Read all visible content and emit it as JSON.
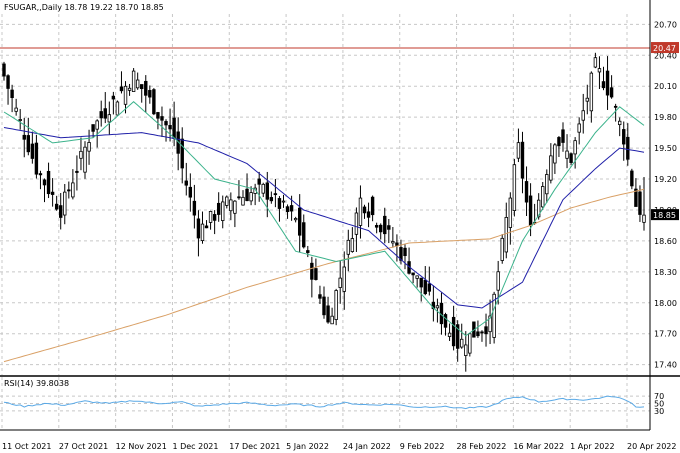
{
  "header": {
    "symbol_line": "FSUGAR,,Daily  18.78 19.22 18.70 18.85",
    "rsi_label": "RSI(14) 39.8038"
  },
  "colors": {
    "bull": "#ffffff",
    "bear": "#000000",
    "ma_fast": "#3cb38c",
    "ma_mid": "#1f1fa8",
    "ma_slow": "#d9a066",
    "resistance": "#c0392b",
    "rsi": "#5aa9e6",
    "grid": "#c8c8c8",
    "last_price_bg": "#000000"
  },
  "chart_data": {
    "type": "candlestick",
    "title": "FSUGAR,,Daily",
    "price_ylim": [
      17.3,
      20.8
    ],
    "price_ticks": [
      "20.70",
      "20.40",
      "20.10",
      "19.80",
      "19.50",
      "19.20",
      "18.90",
      "18.60",
      "18.30",
      "18.00",
      "17.70",
      "17.40"
    ],
    "rsi_ylim": [
      0,
      100
    ],
    "rsi_ticks": [
      "70",
      "50",
      "30"
    ],
    "x_labels": [
      "11 Oct 2021",
      "27 Oct 2021",
      "12 Nov 2021",
      "1 Dec 2021",
      "17 Dec 2021",
      "5 Jan 2022",
      "24 Jan 2022",
      "9 Feb 2022",
      "28 Feb 2022",
      "16 Mar 2022",
      "1 Apr 2022",
      "20 Apr 2022"
    ],
    "resistance_level": "20.47",
    "last_price": "18.85",
    "last_ohlc": {
      "open": 18.78,
      "high": 19.22,
      "low": 18.7,
      "close": 18.85
    },
    "grid": true,
    "key_closes": [
      {
        "bar": 0,
        "close": 20.2
      },
      {
        "bar": 8,
        "close": 19.3
      },
      {
        "bar": 14,
        "close": 18.9
      },
      {
        "bar": 22,
        "close": 19.7
      },
      {
        "bar": 32,
        "close": 20.2
      },
      {
        "bar": 42,
        "close": 19.6
      },
      {
        "bar": 48,
        "close": 18.7
      },
      {
        "bar": 56,
        "close": 19.0
      },
      {
        "bar": 64,
        "close": 19.1
      },
      {
        "bar": 72,
        "close": 18.8
      },
      {
        "bar": 80,
        "close": 17.8
      },
      {
        "bar": 88,
        "close": 19.0
      },
      {
        "bar": 96,
        "close": 18.6
      },
      {
        "bar": 104,
        "close": 18.1
      },
      {
        "bar": 112,
        "close": 17.6
      },
      {
        "bar": 120,
        "close": 17.8
      },
      {
        "bar": 124,
        "close": 18.8
      },
      {
        "bar": 127,
        "close": 19.5
      },
      {
        "bar": 130,
        "close": 18.7
      },
      {
        "bar": 136,
        "close": 19.6
      },
      {
        "bar": 140,
        "close": 19.4
      },
      {
        "bar": 146,
        "close": 20.3
      },
      {
        "bar": 150,
        "close": 20.0
      },
      {
        "bar": 153,
        "close": 19.6
      },
      {
        "bar": 156,
        "close": 18.95
      },
      {
        "bar": 158,
        "close": 18.85
      }
    ],
    "ma_fast_points": [
      {
        "bar": 0,
        "value": 19.85
      },
      {
        "bar": 12,
        "value": 19.55
      },
      {
        "bar": 22,
        "value": 19.6
      },
      {
        "bar": 32,
        "value": 19.95
      },
      {
        "bar": 42,
        "value": 19.6
      },
      {
        "bar": 52,
        "value": 19.2
      },
      {
        "bar": 62,
        "value": 19.1
      },
      {
        "bar": 72,
        "value": 18.5
      },
      {
        "bar": 82,
        "value": 18.4
      },
      {
        "bar": 94,
        "value": 18.5
      },
      {
        "bar": 106,
        "value": 17.95
      },
      {
        "bar": 114,
        "value": 17.68
      },
      {
        "bar": 120,
        "value": 17.85
      },
      {
        "bar": 128,
        "value": 18.6
      },
      {
        "bar": 136,
        "value": 19.1
      },
      {
        "bar": 146,
        "value": 19.65
      },
      {
        "bar": 152,
        "value": 19.9
      },
      {
        "bar": 158,
        "value": 19.72
      }
    ],
    "ma_mid_points": [
      {
        "bar": 0,
        "value": 19.7
      },
      {
        "bar": 14,
        "value": 19.6
      },
      {
        "bar": 34,
        "value": 19.65
      },
      {
        "bar": 48,
        "value": 19.55
      },
      {
        "bar": 60,
        "value": 19.35
      },
      {
        "bar": 74,
        "value": 18.9
      },
      {
        "bar": 90,
        "value": 18.7
      },
      {
        "bar": 100,
        "value": 18.35
      },
      {
        "bar": 112,
        "value": 17.98
      },
      {
        "bar": 118,
        "value": 17.95
      },
      {
        "bar": 128,
        "value": 18.2
      },
      {
        "bar": 138,
        "value": 19.0
      },
      {
        "bar": 146,
        "value": 19.3
      },
      {
        "bar": 152,
        "value": 19.5
      },
      {
        "bar": 158,
        "value": 19.46
      }
    ],
    "ma_slow_points": [
      {
        "bar": 0,
        "value": 17.43
      },
      {
        "bar": 20,
        "value": 17.65
      },
      {
        "bar": 40,
        "value": 17.88
      },
      {
        "bar": 60,
        "value": 18.15
      },
      {
        "bar": 80,
        "value": 18.38
      },
      {
        "bar": 100,
        "value": 18.58
      },
      {
        "bar": 120,
        "value": 18.62
      },
      {
        "bar": 130,
        "value": 18.75
      },
      {
        "bar": 140,
        "value": 18.92
      },
      {
        "bar": 150,
        "value": 19.03
      },
      {
        "bar": 158,
        "value": 19.1
      }
    ],
    "rsi_points": [
      {
        "bar": 0,
        "value": 53
      },
      {
        "bar": 5,
        "value": 42
      },
      {
        "bar": 10,
        "value": 50
      },
      {
        "bar": 15,
        "value": 46
      },
      {
        "bar": 20,
        "value": 56
      },
      {
        "bar": 26,
        "value": 50
      },
      {
        "bar": 32,
        "value": 58
      },
      {
        "bar": 38,
        "value": 50
      },
      {
        "bar": 44,
        "value": 54
      },
      {
        "bar": 48,
        "value": 42
      },
      {
        "bar": 54,
        "value": 48
      },
      {
        "bar": 60,
        "value": 52
      },
      {
        "bar": 66,
        "value": 45
      },
      {
        "bar": 72,
        "value": 48
      },
      {
        "bar": 78,
        "value": 42
      },
      {
        "bar": 84,
        "value": 52
      },
      {
        "bar": 90,
        "value": 46
      },
      {
        "bar": 96,
        "value": 48
      },
      {
        "bar": 102,
        "value": 40
      },
      {
        "bar": 108,
        "value": 42
      },
      {
        "bar": 114,
        "value": 37
      },
      {
        "bar": 120,
        "value": 42
      },
      {
        "bar": 124,
        "value": 62
      },
      {
        "bar": 128,
        "value": 68
      },
      {
        "bar": 132,
        "value": 55
      },
      {
        "bar": 138,
        "value": 62
      },
      {
        "bar": 144,
        "value": 60
      },
      {
        "bar": 150,
        "value": 70
      },
      {
        "bar": 154,
        "value": 58
      },
      {
        "bar": 156,
        "value": 42
      },
      {
        "bar": 158,
        "value": 40
      }
    ]
  }
}
